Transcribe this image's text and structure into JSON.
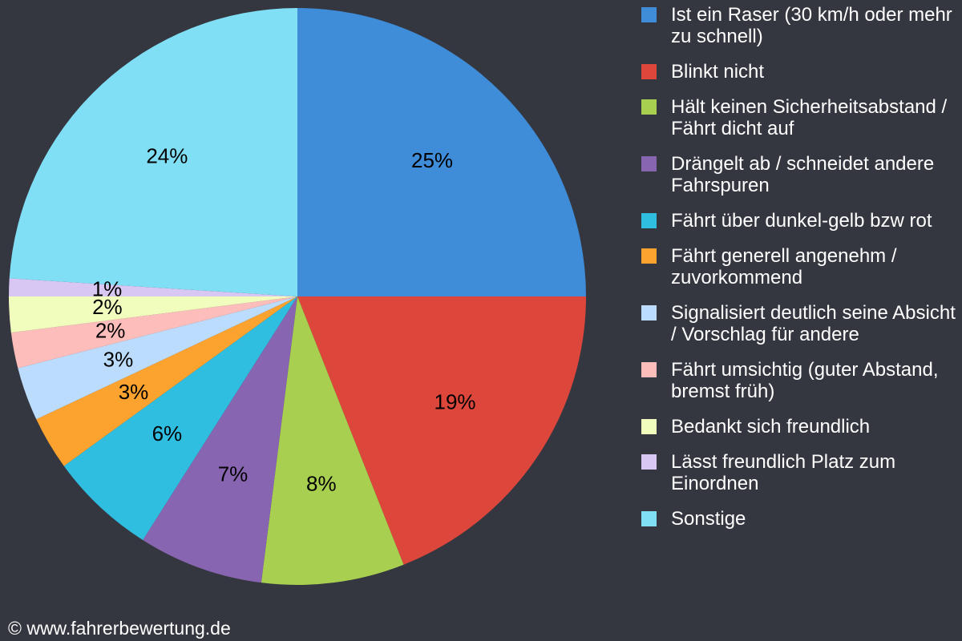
{
  "chart_data": {
    "type": "pie",
    "start": "top, clockwise",
    "legend_position": "right",
    "slices": [
      {
        "label": "Ist ein Raser (30 km/h oder mehr zu schnell)",
        "value": 25,
        "display": "25%",
        "color": "#3f8cd8"
      },
      {
        "label": "Blinkt nicht",
        "value": 19,
        "display": "19%",
        "color": "#dc463b"
      },
      {
        "label": "Hält keinen Sicherheitsabstand / Fährt dicht auf",
        "value": 8,
        "display": "8%",
        "color": "#a8cf4f"
      },
      {
        "label": "Drängelt ab / schneidet andere Fahrspuren",
        "value": 7,
        "display": "7%",
        "color": "#8765b1"
      },
      {
        "label": "Fährt über dunkel-gelb bzw rot",
        "value": 6,
        "display": "6%",
        "color": "#2fbde0"
      },
      {
        "label": "Fährt generell angenehm / zuvorkommend",
        "value": 3,
        "display": "3%",
        "color": "#fca22f"
      },
      {
        "label": "Signalisiert deutlich seine Absicht / Vorschlag für andere",
        "value": 3,
        "display": "3%",
        "color": "#bcdcfd"
      },
      {
        "label": "Fährt umsichtig (guter Abstand, bremst früh)",
        "value": 2,
        "display": "2%",
        "color": "#fdbdbb"
      },
      {
        "label": "Bedankt sich freundlich",
        "value": 2,
        "display": "2%",
        "color": "#f0fdbd"
      },
      {
        "label": "Lässt freundlich Platz zum Einordnen",
        "value": 1,
        "display": "1%",
        "color": "#d9c7f3"
      },
      {
        "label": "Sonstige",
        "value": 24,
        "display": "24%",
        "color": "#80dff5"
      }
    ]
  },
  "credit": "© www.fahrerbewertung.de"
}
